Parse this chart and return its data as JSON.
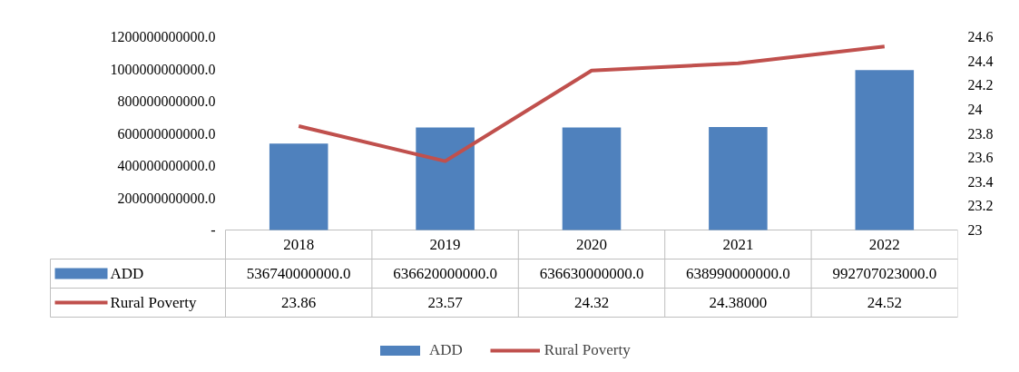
{
  "chart_data": {
    "type": "bar",
    "categories": [
      "2018",
      "2019",
      "2020",
      "2021",
      "2022"
    ],
    "series": [
      {
        "name": "ADD",
        "color": "#4f81bd",
        "values": [
          536740000000.0,
          636620000000.0,
          636630000000.0,
          638990000000.0,
          992707023000.0
        ],
        "value_labels": [
          "536740000000.0",
          "636620000000.0",
          "636630000000.0",
          "638990000000.0",
          "992707023000.0"
        ]
      },
      {
        "name": "Rural Poverty",
        "type": "line",
        "axis": "y2",
        "color": "#c0504d",
        "values": [
          23.86,
          23.57,
          24.32,
          24.38,
          24.52
        ],
        "value_labels": [
          "23.86",
          "23.57",
          "24.32",
          "24.38000",
          "24.52"
        ]
      }
    ],
    "ylim": [
      0,
      1200000000000
    ],
    "yticks": [
      {
        "value": 0,
        "label": "-"
      },
      {
        "value": 200000000000,
        "label": "200000000000.0"
      },
      {
        "value": 400000000000,
        "label": "400000000000.0"
      },
      {
        "value": 600000000000,
        "label": "600000000000.0"
      },
      {
        "value": 800000000000,
        "label": "800000000000.0"
      },
      {
        "value": 1000000000000,
        "label": "1000000000000.0"
      },
      {
        "value": 1200000000000,
        "label": "1200000000000.0"
      }
    ],
    "y2lim": [
      23,
      24.6
    ],
    "y2ticks": [
      23,
      23.2,
      23.4,
      23.6,
      23.8,
      24,
      24.2,
      24.4,
      24.6
    ],
    "legend": "bottom"
  }
}
